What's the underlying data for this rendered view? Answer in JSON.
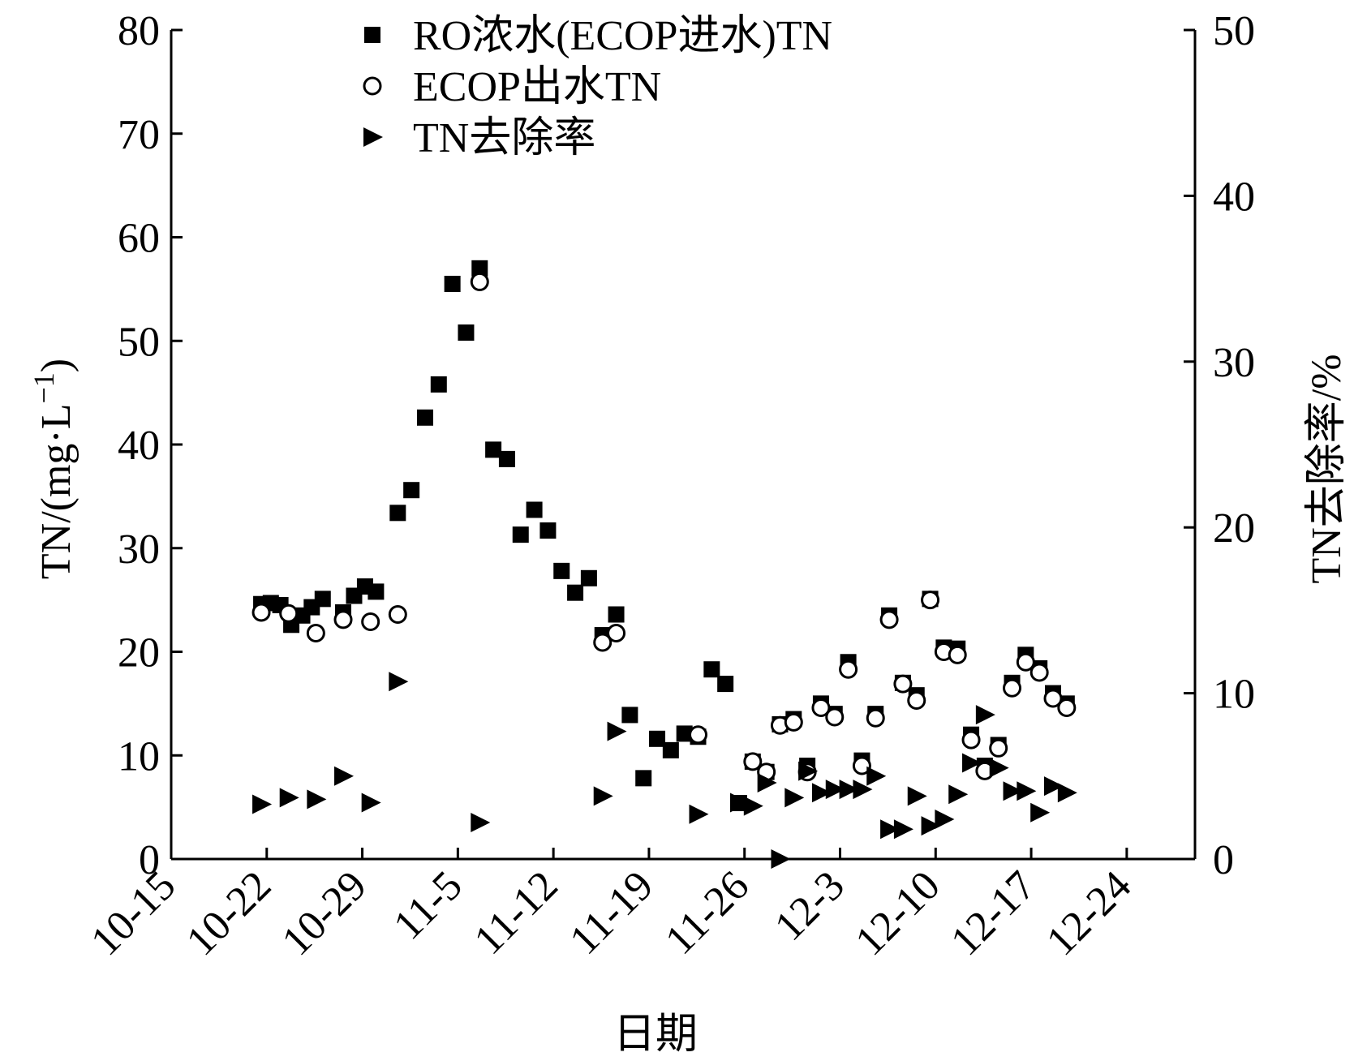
{
  "chart_data": {
    "type": "scatter",
    "x_axis": {
      "label": "日期",
      "ticks": [
        "10-15",
        "10-22",
        "10-29",
        "11-5",
        "11-12",
        "11-19",
        "11-26",
        "12-3",
        "12-10",
        "12-17",
        "12-24"
      ],
      "tick_days": [
        0,
        7,
        14,
        21,
        28,
        35,
        42,
        49,
        56,
        63,
        70
      ],
      "range_days": [
        0,
        75
      ]
    },
    "y_left": {
      "label": "TN/(mg·L",
      "label_sup": "−1",
      "label_close": ")",
      "ticks": [
        0,
        10,
        20,
        30,
        40,
        50,
        60,
        70,
        80
      ],
      "range": [
        0,
        80
      ]
    },
    "y_right": {
      "label": "TN去除率/%",
      "ticks": [
        0,
        10,
        20,
        30,
        40,
        50
      ],
      "range": [
        0,
        50
      ]
    },
    "legend": {
      "position": "top-left",
      "items": [
        "RO浓水(ECOP进水)TN",
        "ECOP出水TN",
        "TN去除率"
      ]
    },
    "series": [
      {
        "name": "RO浓水(ECOP进水)TN",
        "marker": "filled-square",
        "axis": "left",
        "points": [
          [
            6.6,
            24.6
          ],
          [
            7.3,
            24.7
          ],
          [
            8.0,
            24.5
          ],
          [
            8.8,
            22.6
          ],
          [
            9.6,
            23.5
          ],
          [
            10.3,
            24.3
          ],
          [
            11.1,
            25.1
          ],
          [
            12.6,
            23.8
          ],
          [
            13.4,
            25.4
          ],
          [
            14.2,
            26.3
          ],
          [
            15.0,
            25.8
          ],
          [
            16.6,
            33.4
          ],
          [
            17.6,
            35.6
          ],
          [
            18.6,
            42.6
          ],
          [
            19.6,
            45.8
          ],
          [
            20.6,
            55.5
          ],
          [
            21.6,
            50.8
          ],
          [
            22.6,
            57.0
          ],
          [
            23.6,
            39.5
          ],
          [
            24.6,
            38.6
          ],
          [
            25.6,
            31.3
          ],
          [
            26.6,
            33.7
          ],
          [
            27.6,
            31.7
          ],
          [
            28.6,
            27.8
          ],
          [
            29.6,
            25.7
          ],
          [
            30.6,
            27.1
          ],
          [
            31.6,
            21.6
          ],
          [
            32.6,
            23.6
          ],
          [
            33.6,
            13.9
          ],
          [
            34.6,
            7.8
          ],
          [
            35.6,
            11.6
          ],
          [
            36.6,
            10.5
          ],
          [
            37.6,
            12.1
          ],
          [
            38.6,
            11.8
          ],
          [
            39.6,
            18.3
          ],
          [
            40.6,
            16.9
          ],
          [
            41.6,
            5.4
          ],
          [
            42.6,
            9.4
          ],
          [
            43.6,
            8.4
          ],
          [
            44.6,
            13.0
          ],
          [
            45.6,
            13.5
          ],
          [
            46.6,
            9.0
          ],
          [
            47.6,
            15.0
          ],
          [
            48.6,
            14.0
          ],
          [
            49.6,
            19.0
          ],
          [
            50.6,
            9.5
          ],
          [
            51.6,
            14.0
          ],
          [
            52.6,
            23.5
          ],
          [
            53.6,
            17.0
          ],
          [
            54.6,
            15.8
          ],
          [
            55.6,
            25.1
          ],
          [
            56.6,
            20.4
          ],
          [
            57.6,
            20.3
          ],
          [
            58.6,
            12.0
          ],
          [
            59.6,
            9.0
          ],
          [
            60.6,
            11.0
          ],
          [
            61.6,
            17.0
          ],
          [
            62.6,
            19.7
          ],
          [
            63.6,
            18.4
          ],
          [
            64.6,
            16.0
          ],
          [
            65.6,
            15.0
          ]
        ]
      },
      {
        "name": "ECOP出水TN",
        "marker": "open-circle",
        "axis": "left",
        "points": [
          [
            6.6,
            23.8
          ],
          [
            8.6,
            23.7
          ],
          [
            10.6,
            21.8
          ],
          [
            12.6,
            23.1
          ],
          [
            14.6,
            22.9
          ],
          [
            16.6,
            23.6
          ],
          [
            22.6,
            55.7
          ],
          [
            31.6,
            20.9
          ],
          [
            32.6,
            21.8
          ],
          [
            38.6,
            12.0
          ],
          [
            42.6,
            9.4
          ],
          [
            43.6,
            8.4
          ],
          [
            44.6,
            12.9
          ],
          [
            45.6,
            13.2
          ],
          [
            46.6,
            8.4
          ],
          [
            47.6,
            14.6
          ],
          [
            48.6,
            13.7
          ],
          [
            49.6,
            18.3
          ],
          [
            50.6,
            9.0
          ],
          [
            51.6,
            13.6
          ],
          [
            52.6,
            23.1
          ],
          [
            53.6,
            16.9
          ],
          [
            54.6,
            15.3
          ],
          [
            55.6,
            25.0
          ],
          [
            56.6,
            20.0
          ],
          [
            57.6,
            19.7
          ],
          [
            58.6,
            11.5
          ],
          [
            59.6,
            8.5
          ],
          [
            60.6,
            10.7
          ],
          [
            61.6,
            16.5
          ],
          [
            62.6,
            19.0
          ],
          [
            63.6,
            18.0
          ],
          [
            64.6,
            15.5
          ],
          [
            65.6,
            14.6
          ]
        ]
      },
      {
        "name": "TN去除率",
        "marker": "filled-triangle-right",
        "axis": "right",
        "points": [
          [
            6.6,
            3.3
          ],
          [
            8.6,
            3.7
          ],
          [
            10.6,
            3.6
          ],
          [
            12.6,
            5.0
          ],
          [
            14.6,
            3.4
          ],
          [
            16.6,
            10.7
          ],
          [
            22.6,
            2.2
          ],
          [
            31.6,
            3.8
          ],
          [
            32.6,
            7.7
          ],
          [
            38.6,
            2.7
          ],
          [
            41.6,
            3.4
          ],
          [
            42.6,
            3.2
          ],
          [
            43.6,
            4.6
          ],
          [
            44.6,
            0.0
          ],
          [
            45.6,
            3.7
          ],
          [
            46.6,
            5.3
          ],
          [
            47.6,
            4.0
          ],
          [
            48.6,
            4.2
          ],
          [
            49.6,
            4.2
          ],
          [
            50.6,
            4.2
          ],
          [
            51.6,
            5.0
          ],
          [
            52.6,
            1.8
          ],
          [
            53.6,
            1.8
          ],
          [
            54.6,
            3.8
          ],
          [
            55.6,
            2.0
          ],
          [
            56.6,
            2.4
          ],
          [
            57.6,
            3.9
          ],
          [
            58.6,
            5.8
          ],
          [
            59.6,
            8.7
          ],
          [
            60.6,
            5.5
          ],
          [
            61.6,
            4.1
          ],
          [
            62.6,
            4.1
          ],
          [
            63.6,
            2.8
          ],
          [
            64.6,
            4.4
          ],
          [
            65.6,
            4.0
          ]
        ]
      }
    ]
  }
}
